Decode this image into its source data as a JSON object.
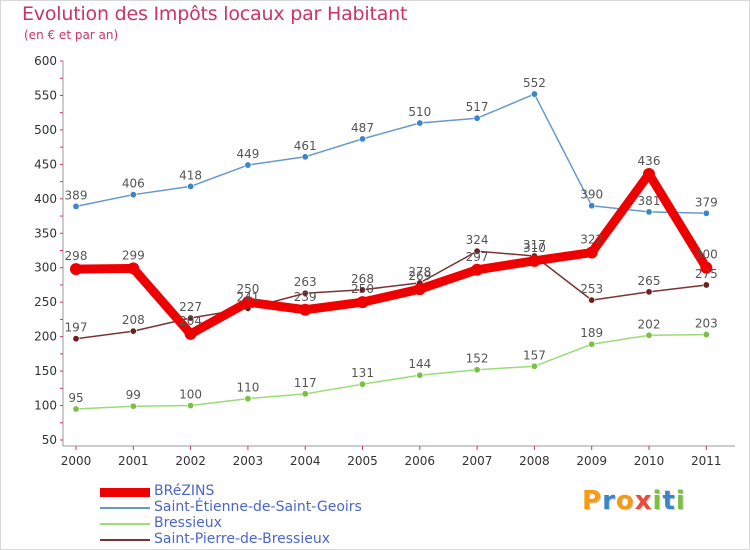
{
  "title": "Evolution des Impôts locaux par Habitant",
  "subtitle": "(en € et par an)",
  "logo": {
    "text": "Proxiti",
    "letters": [
      {
        "ch": "P",
        "color": "#f39c12"
      },
      {
        "ch": "r",
        "color": "#3a86c8"
      },
      {
        "ch": "o",
        "color": "#f39c12"
      },
      {
        "ch": "x",
        "color": "#e74c3c"
      },
      {
        "ch": "i",
        "color": "#7bc043"
      },
      {
        "ch": "t",
        "color": "#3a86c8"
      },
      {
        "ch": "i",
        "color": "#7bc043"
      }
    ]
  },
  "chart_data": {
    "type": "line",
    "title": "Evolution des Impôts locaux par Habitant",
    "subtitle": "(en € et par an)",
    "x": [
      "2000",
      "2001",
      "2002",
      "2003",
      "2004",
      "2005",
      "2006",
      "2007",
      "2008",
      "2009",
      "2010",
      "2011"
    ],
    "ylim": [
      50,
      600
    ],
    "yticks": [
      50,
      100,
      150,
      200,
      250,
      300,
      350,
      400,
      450,
      500,
      550,
      600
    ],
    "grid": false,
    "legend_position": "bottom-left",
    "series": [
      {
        "name": "Saint-Étienne-de-Saint-Geoirs",
        "color": "#6699cc",
        "marker": "#3a86c8",
        "values": [
          389,
          406,
          418,
          449,
          461,
          487,
          510,
          517,
          552,
          390,
          381,
          379
        ]
      },
      {
        "name": "Bressieux",
        "color": "#99dd77",
        "marker": "#7bc043",
        "values": [
          95,
          99,
          100,
          110,
          117,
          131,
          144,
          152,
          157,
          189,
          202,
          203
        ]
      },
      {
        "name": "Saint-Pierre-de-Bressieux",
        "color": "#7a3333",
        "marker": "#6b1f1f",
        "values": [
          197,
          208,
          227,
          241,
          263,
          268,
          278,
          324,
          317,
          253,
          265,
          275
        ]
      },
      {
        "name": "BRéZINS",
        "color": "#ee0000",
        "marker": "#ee0000",
        "values": [
          298,
          299,
          204,
          250,
          239,
          250,
          269,
          297,
          310,
          322,
          436,
          300
        ]
      }
    ]
  }
}
